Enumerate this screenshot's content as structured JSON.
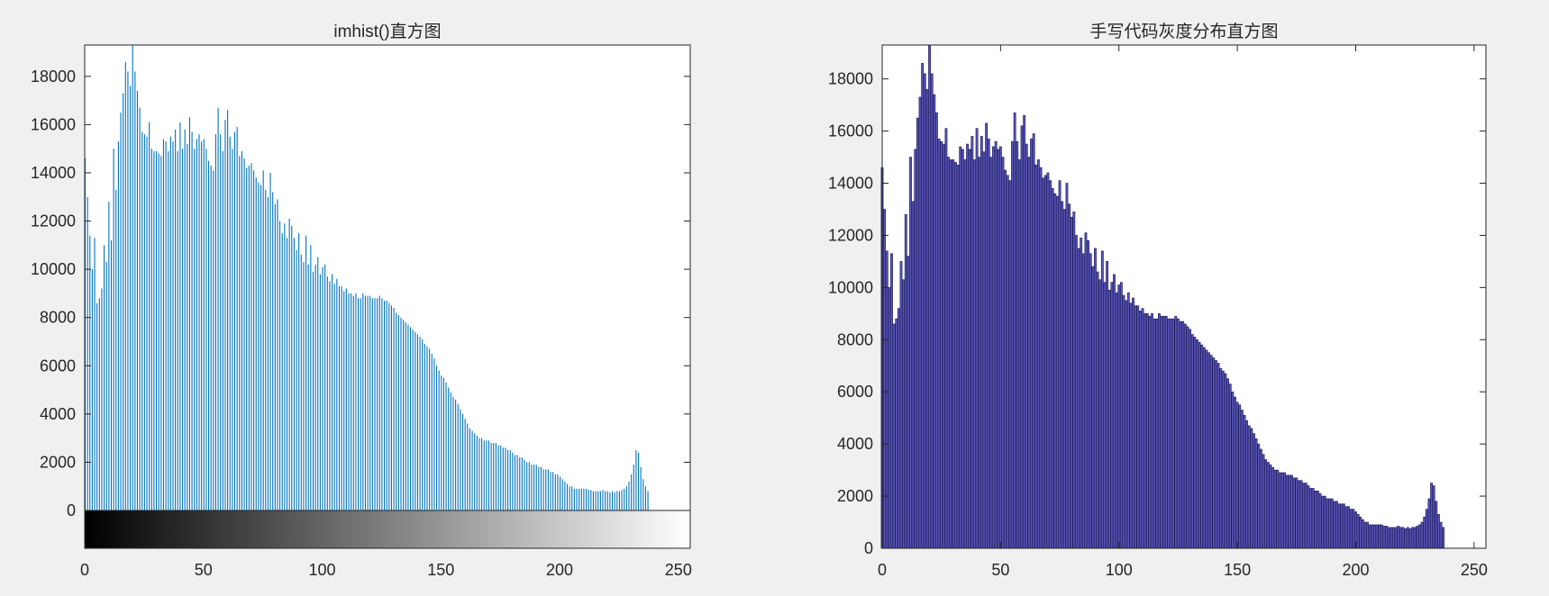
{
  "charts": [
    {
      "type": "bar",
      "title": "imhist()直方图",
      "xlim": [
        0,
        255
      ],
      "ylim": [
        0,
        19300
      ],
      "xticks": [
        0,
        50,
        100,
        150,
        200,
        250
      ],
      "yticks": [
        0,
        2000,
        4000,
        6000,
        8000,
        10000,
        12000,
        14000,
        16000,
        18000
      ],
      "bar_color": "#0072bd",
      "bar_edge": null,
      "bar_style": "stem",
      "colorbar": {
        "from": "#000000",
        "to": "#ffffff",
        "range": [
          0,
          255
        ]
      }
    },
    {
      "type": "bar",
      "title": "手写代码灰度分布直方图",
      "xlim": [
        0,
        255
      ],
      "ylim": [
        0,
        19300
      ],
      "xticks": [
        0,
        50,
        100,
        150,
        200,
        250
      ],
      "yticks": [
        0,
        2000,
        4000,
        6000,
        8000,
        10000,
        12000,
        14000,
        16000,
        18000
      ],
      "bar_color": "#5a55b4",
      "bar_edge": "#1a1a5e",
      "bar_style": "filled"
    }
  ],
  "chart_data": {
    "type": "bar",
    "x_start": 0,
    "x_end": 255,
    "values": [
      14600,
      13000,
      11400,
      10000,
      11300,
      8600,
      8800,
      9200,
      11000,
      10300,
      12800,
      11200,
      15000,
      13300,
      15300,
      16500,
      17300,
      18600,
      18200,
      17600,
      19300,
      18200,
      17400,
      16700,
      15700,
      15600,
      15500,
      16100,
      15000,
      14900,
      14900,
      14800,
      14700,
      15400,
      15300,
      14900,
      15500,
      15300,
      15800,
      14900,
      16100,
      15000,
      15800,
      15200,
      16300,
      15700,
      15000,
      15400,
      15600,
      15300,
      15400,
      15000,
      14500,
      14300,
      14100,
      15600,
      16700,
      15600,
      14900,
      16200,
      16600,
      15500,
      15000,
      15700,
      15900,
      14700,
      14900,
      14600,
      14200,
      14300,
      14400,
      14100,
      13800,
      13600,
      13500,
      14100,
      13300,
      13000,
      14000,
      13200,
      12700,
      12900,
      12000,
      11500,
      11900,
      11300,
      12100,
      11800,
      11300,
      10800,
      11500,
      10600,
      10300,
      11400,
      10200,
      11000,
      9900,
      10200,
      10500,
      9800,
      10100,
      10200,
      9700,
      9500,
      9800,
      9400,
      9600,
      9300,
      9300,
      9100,
      9200,
      9000,
      9000,
      8900,
      9000,
      8800,
      8800,
      9000,
      8900,
      8900,
      8900,
      8800,
      8800,
      8800,
      8900,
      8800,
      8700,
      8700,
      8600,
      8500,
      8400,
      8200,
      8100,
      8000,
      7900,
      7800,
      7700,
      7600,
      7500,
      7400,
      7300,
      7200,
      7100,
      6900,
      6800,
      6700,
      6500,
      6300,
      6000,
      5800,
      5600,
      5500,
      5300,
      5100,
      4900,
      4700,
      4600,
      4400,
      4200,
      4000,
      3800,
      3600,
      3400,
      3300,
      3200,
      3100,
      3000,
      3000,
      2900,
      2900,
      2900,
      2800,
      2800,
      2800,
      2700,
      2700,
      2600,
      2600,
      2500,
      2500,
      2400,
      2300,
      2300,
      2200,
      2200,
      2100,
      2000,
      2000,
      1900,
      1900,
      1900,
      1800,
      1800,
      1700,
      1700,
      1700,
      1600,
      1600,
      1500,
      1500,
      1400,
      1300,
      1200,
      1100,
      1000,
      1000,
      900,
      900,
      900,
      900,
      900,
      900,
      850,
      850,
      800,
      800,
      800,
      800,
      850,
      800,
      800,
      750,
      800,
      750,
      800,
      800,
      850,
      900,
      1000,
      1200,
      1500,
      1900,
      2500,
      2400,
      1800,
      1300,
      1000,
      800
    ]
  }
}
